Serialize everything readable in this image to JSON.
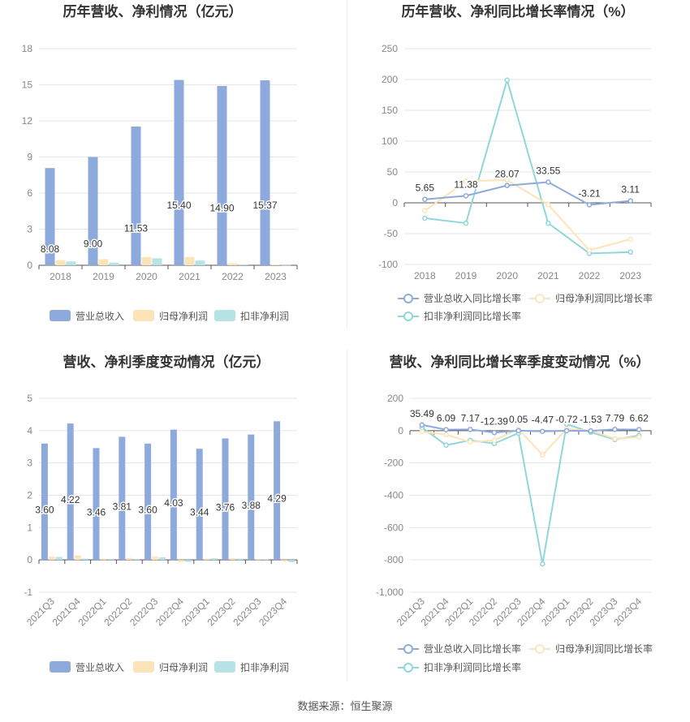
{
  "source_text": "数据来源：恒生聚源",
  "colors": {
    "revenue": "#8eaadc",
    "net_profit": "#fde3b8",
    "deducted_profit": "#b6e3e6",
    "revenue_line": "#8eaadc",
    "net_profit_line": "#fde3b8",
    "deducted_line": "#8fd7dc",
    "grid": "#e6e6e6",
    "axis_text": "#888888",
    "title": "#333333"
  },
  "chart_data": [
    {
      "id": "annual-amounts",
      "type": "bar",
      "title": "历年营收、净利情况（亿元）",
      "categories": [
        "2018",
        "2019",
        "2020",
        "2021",
        "2022",
        "2023"
      ],
      "yticks": [
        "0",
        "3",
        "6",
        "9",
        "12",
        "15",
        "18"
      ],
      "ylim": [
        0,
        18
      ],
      "grid": true,
      "legend_position": "bottom",
      "series": [
        {
          "name": "营业总收入",
          "values": [
            8.08,
            9.0,
            11.53,
            15.4,
            14.9,
            15.37
          ],
          "labels": [
            "8.08",
            "9.00",
            "11.53",
            "15.40",
            "14.90",
            "15.37"
          ]
        },
        {
          "name": "归母净利润",
          "values": [
            0.42,
            0.5,
            0.68,
            0.68,
            0.16,
            0.07
          ]
        },
        {
          "name": "扣非净利润",
          "values": [
            0.32,
            0.22,
            0.58,
            0.39,
            0.07,
            0.02
          ]
        }
      ]
    },
    {
      "id": "annual-growth",
      "type": "line",
      "title": "历年营收、净利同比增长率情况（%）",
      "categories": [
        "2018",
        "2019",
        "2020",
        "2021",
        "2022",
        "2023"
      ],
      "yticks": [
        "-100",
        "-50",
        "0",
        "50",
        "100",
        "150",
        "200",
        "250"
      ],
      "ylim": [
        -100,
        250
      ],
      "grid": true,
      "legend_position": "bottom",
      "series": [
        {
          "name": "营业总收入同比增长率",
          "values": [
            5.65,
            11.38,
            28.07,
            33.55,
            -3.21,
            3.11
          ],
          "labels": [
            "5.65",
            "11.38",
            "28.07",
            "33.55",
            "-3.21",
            "3.11"
          ]
        },
        {
          "name": "归母净利润同比增长率",
          "values": [
            -13,
            35,
            37,
            -3,
            -77,
            -59
          ]
        },
        {
          "name": "扣非净利润同比增长率",
          "values": [
            -25,
            -33,
            199,
            -33,
            -82,
            -80
          ]
        }
      ]
    },
    {
      "id": "quarterly-amounts",
      "type": "bar",
      "title": "营收、净利季度变动情况（亿元）",
      "categories": [
        "2021Q3",
        "2021Q4",
        "2022Q1",
        "2022Q2",
        "2022Q3",
        "2022Q4",
        "2023Q1",
        "2023Q2",
        "2023Q3",
        "2023Q4"
      ],
      "yticks": [
        "-1",
        "0",
        "1",
        "2",
        "3",
        "4",
        "5"
      ],
      "ylim": [
        -1,
        5
      ],
      "grid": true,
      "legend_position": "bottom",
      "series": [
        {
          "name": "营业总收入",
          "values": [
            3.6,
            4.22,
            3.46,
            3.81,
            3.6,
            4.03,
            3.44,
            3.76,
            3.88,
            4.29
          ],
          "labels": [
            "3.60",
            "4.22",
            "3.46",
            "3.81",
            "3.60",
            "4.03",
            "3.44",
            "3.76",
            "3.88",
            "4.29"
          ]
        },
        {
          "name": "归母净利润",
          "values": [
            0.1,
            0.14,
            0.04,
            0.06,
            0.1,
            -0.06,
            0.04,
            0.06,
            0.03,
            -0.04
          ]
        },
        {
          "name": "扣非净利润",
          "values": [
            0.09,
            0.04,
            0.03,
            0.03,
            0.08,
            -0.06,
            0.05,
            0.04,
            0.02,
            -0.07
          ]
        }
      ]
    },
    {
      "id": "quarterly-growth",
      "type": "line",
      "title": "营收、净利同比增长率季度变动情况（%）",
      "categories": [
        "2021Q3",
        "2021Q4",
        "2022Q1",
        "2022Q2",
        "2022Q3",
        "2022Q4",
        "2023Q1",
        "2023Q2",
        "2023Q3",
        "2023Q4"
      ],
      "yticks": [
        "-1,000",
        "-800",
        "-600",
        "-400",
        "-200",
        "0",
        "200"
      ],
      "ylim": [
        -1000,
        200
      ],
      "grid": true,
      "legend_position": "bottom",
      "series": [
        {
          "name": "营业总收入同比增长率",
          "values": [
            35.49,
            6.09,
            7.17,
            -12.39,
            0.05,
            -4.47,
            -0.72,
            -1.53,
            7.79,
            6.62
          ],
          "labels": [
            "35.49",
            "6.09",
            "7.17",
            "-12.39",
            "0.05",
            "-4.47",
            "-0.72",
            "-1.53",
            "7.79",
            "6.62"
          ]
        },
        {
          "name": "归母净利润同比增长率",
          "values": [
            -5,
            -25,
            -70,
            -60,
            10,
            -150,
            10,
            0,
            -50,
            -40
          ]
        },
        {
          "name": "扣非净利润同比增长率",
          "values": [
            20,
            -90,
            -60,
            -80,
            -15,
            -825,
            40,
            -10,
            -55,
            -30
          ]
        }
      ]
    }
  ]
}
